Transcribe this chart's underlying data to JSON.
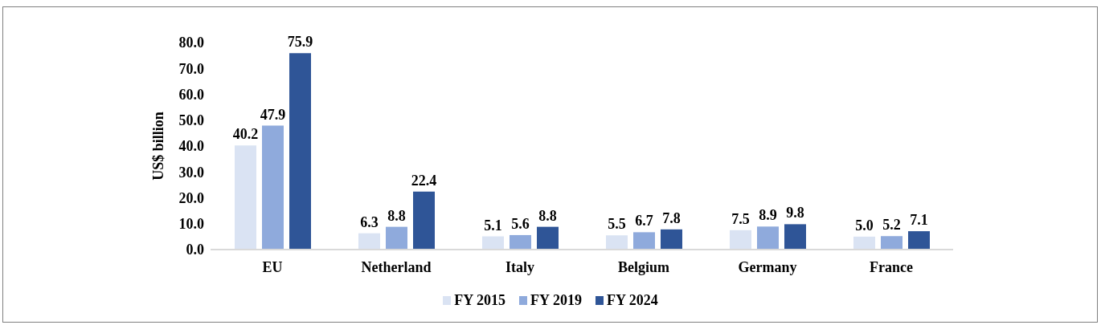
{
  "chart_data": {
    "type": "bar",
    "ylabel": "US$ billion",
    "categories": [
      "EU",
      "Netherland",
      "Italy",
      "Belgium",
      "Germany",
      "France"
    ],
    "series": [
      {
        "name": "FY 2015",
        "color": "#dae3f3",
        "values": [
          40.2,
          6.3,
          5.1,
          5.5,
          7.5,
          5.0
        ],
        "value_labels": [
          "40.2",
          "6.3",
          "5.1",
          "5.5",
          "7.5",
          "5.0"
        ]
      },
      {
        "name": "FY 2019",
        "color": "#8faadc",
        "values": [
          47.9,
          8.8,
          5.6,
          6.7,
          8.9,
          5.2
        ],
        "value_labels": [
          "47.9",
          "8.8",
          "5.6",
          "6.7",
          "8.9",
          "5.2"
        ]
      },
      {
        "name": "FY 2024",
        "color": "#2f5597",
        "values": [
          75.9,
          22.4,
          8.8,
          7.8,
          9.8,
          7.1
        ],
        "value_labels": [
          "75.9",
          "22.4",
          "8.8",
          "7.8",
          "9.8",
          "7.1"
        ]
      }
    ],
    "ylim": [
      0,
      80
    ],
    "yticks": [
      {
        "value": 0,
        "label": "0.0"
      },
      {
        "value": 10,
        "label": "10.0"
      },
      {
        "value": 20,
        "label": "20.0"
      },
      {
        "value": 30,
        "label": "30.0"
      },
      {
        "value": 40,
        "label": "40.0"
      },
      {
        "value": 50,
        "label": "50.0"
      },
      {
        "value": 60,
        "label": "60.0"
      },
      {
        "value": 70,
        "label": "70.0"
      },
      {
        "value": 80,
        "label": "80.0"
      }
    ],
    "legend": "bottom"
  }
}
